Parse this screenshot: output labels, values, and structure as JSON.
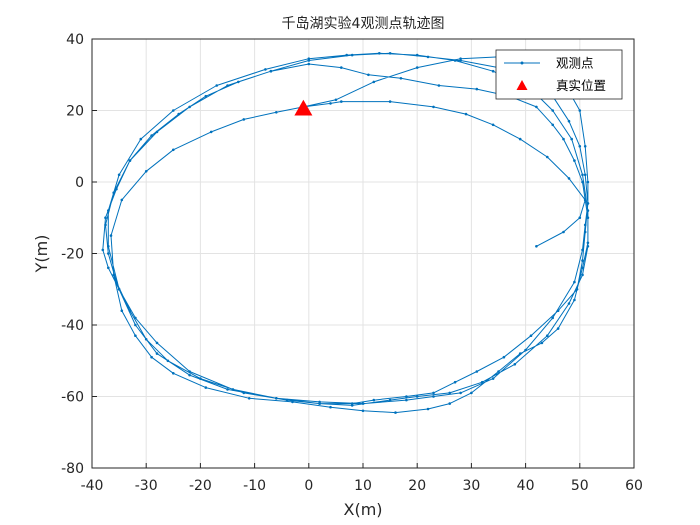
{
  "chart_data": {
    "type": "line",
    "title": "千岛湖实验4观测点轨迹图",
    "xlabel": "X(m)",
    "ylabel": "Y(m)",
    "xlim": [
      -40,
      60
    ],
    "ylim": [
      -80,
      40
    ],
    "xticks": [
      -40,
      -30,
      -20,
      -10,
      0,
      10,
      20,
      30,
      40,
      50,
      60
    ],
    "yticks": [
      -80,
      -60,
      -40,
      -20,
      0,
      20,
      40
    ],
    "grid": true,
    "legend_position": "top-right",
    "series": [
      {
        "name": "观测点",
        "color": "#0072BD",
        "marker": "dot",
        "points": [
          [
            -1,
            21
          ],
          [
            4,
            22
          ],
          [
            6,
            22.5
          ],
          [
            15,
            22.5
          ],
          [
            23,
            21
          ],
          [
            29,
            19
          ],
          [
            34,
            16
          ],
          [
            39,
            12
          ],
          [
            44,
            7
          ],
          [
            48,
            1
          ],
          [
            51,
            -5
          ],
          [
            51.5,
            -10
          ],
          [
            51.5,
            -17
          ],
          [
            50.5,
            -24
          ],
          [
            49,
            -33
          ],
          [
            46,
            -41
          ],
          [
            43,
            -45
          ],
          [
            39,
            -48
          ],
          [
            35,
            -53
          ],
          [
            30,
            -59
          ],
          [
            26,
            -62
          ],
          [
            22,
            -63.5
          ],
          [
            16,
            -64.5
          ],
          [
            10,
            -64
          ],
          [
            4,
            -63
          ],
          [
            -3,
            -61.5
          ],
          [
            -11,
            -60.5
          ],
          [
            -19,
            -57.5
          ],
          [
            -25,
            -53.5
          ],
          [
            -29,
            -49
          ],
          [
            -32,
            -43
          ],
          [
            -34.5,
            -36
          ],
          [
            -36,
            -26
          ],
          [
            -36.5,
            -15
          ],
          [
            -34.5,
            -5
          ],
          [
            -30,
            3
          ],
          [
            -25,
            9
          ],
          [
            -18,
            14
          ],
          [
            -12,
            17.5
          ],
          [
            -6,
            19.5
          ],
          [
            -1,
            21
          ],
          [
            5,
            23
          ],
          [
            12,
            28
          ],
          [
            20,
            32
          ],
          [
            28,
            34.5
          ],
          [
            35,
            35
          ],
          [
            42,
            33
          ],
          [
            47,
            28
          ],
          [
            50,
            20
          ],
          [
            51,
            10
          ],
          [
            51.5,
            0
          ],
          [
            51.5,
            -6
          ],
          [
            51,
            -12
          ],
          [
            50.5,
            -19
          ],
          [
            49,
            -28
          ],
          [
            45,
            -38
          ],
          [
            40,
            -47
          ],
          [
            34,
            -55
          ],
          [
            28,
            -59
          ],
          [
            23,
            -60
          ],
          [
            18,
            -61
          ],
          [
            10,
            -62
          ],
          [
            2,
            -61.5
          ],
          [
            -6,
            -60.5
          ],
          [
            -15,
            -58
          ],
          [
            -22,
            -54
          ],
          [
            -28,
            -48
          ],
          [
            -32,
            -40
          ],
          [
            -35,
            -30
          ],
          [
            -37,
            -18
          ],
          [
            -37,
            -8
          ],
          [
            -35,
            2
          ],
          [
            -31,
            12
          ],
          [
            -25,
            20
          ],
          [
            -17,
            27
          ],
          [
            -8,
            31.5
          ],
          [
            0,
            34.5
          ],
          [
            7,
            35.5
          ],
          [
            13,
            36
          ],
          [
            20,
            35.5
          ],
          [
            27,
            34
          ],
          [
            34,
            31
          ],
          [
            41,
            26
          ],
          [
            45,
            20
          ],
          [
            48.5,
            12
          ],
          [
            50.5,
            2
          ],
          [
            51.5,
            -8
          ],
          [
            51.5,
            -18
          ],
          [
            50.5,
            -26
          ],
          [
            48,
            -34
          ],
          [
            44,
            -43
          ],
          [
            38,
            -51
          ],
          [
            32,
            -56
          ],
          [
            26,
            -59
          ],
          [
            20,
            -60
          ],
          [
            15,
            -61
          ],
          [
            8,
            -62.5
          ],
          [
            2,
            -62
          ],
          [
            -6,
            -60.5
          ],
          [
            -14,
            -58
          ],
          [
            -22,
            -53
          ],
          [
            -28,
            -45
          ],
          [
            -32,
            -38
          ],
          [
            -35,
            -30
          ],
          [
            -37,
            -24
          ],
          [
            -38,
            -19
          ],
          [
            -37.5,
            -10
          ],
          [
            -35.5,
            -2
          ],
          [
            -33,
            6
          ],
          [
            -28,
            14
          ],
          [
            -22,
            21
          ],
          [
            -15,
            27
          ],
          [
            -7,
            31
          ],
          [
            0,
            34
          ],
          [
            8,
            35.5
          ],
          [
            15,
            36
          ],
          [
            22,
            35
          ],
          [
            28,
            34
          ],
          [
            35,
            32
          ],
          [
            41,
            29
          ],
          [
            45,
            24
          ],
          [
            48,
            17
          ],
          [
            50,
            10
          ],
          [
            51,
            2
          ],
          [
            51.5,
            -6
          ],
          [
            51,
            -14
          ],
          [
            50.5,
            -22
          ],
          [
            49.5,
            -30
          ],
          [
            46,
            -36
          ],
          [
            41,
            -43
          ],
          [
            36,
            -49
          ],
          [
            31,
            -53
          ],
          [
            27,
            -56
          ],
          [
            23,
            -59
          ],
          [
            18,
            -60
          ],
          [
            12,
            -61
          ],
          [
            8,
            -62
          ],
          [
            2,
            -62
          ],
          [
            -4,
            -61
          ],
          [
            -12,
            -59
          ],
          [
            -20,
            -55
          ],
          [
            -26,
            -50
          ],
          [
            -30,
            -44
          ],
          [
            -33,
            -36
          ],
          [
            -35.5,
            -28
          ],
          [
            -37,
            -20
          ],
          [
            -37.5,
            -12
          ],
          [
            -36,
            -3
          ],
          [
            -33,
            6
          ],
          [
            -29,
            13
          ],
          [
            -24,
            19
          ],
          [
            -19,
            24
          ],
          [
            -13,
            28
          ],
          [
            -7,
            31
          ],
          [
            0,
            33
          ],
          [
            6,
            32
          ],
          [
            11,
            30
          ],
          [
            17,
            29
          ],
          [
            24,
            27
          ],
          [
            31,
            26
          ],
          [
            37,
            24
          ],
          [
            42,
            21
          ],
          [
            45,
            16
          ],
          [
            47,
            12
          ],
          [
            49,
            6
          ],
          [
            50.5,
            0
          ],
          [
            51,
            -5
          ],
          [
            50,
            -10
          ],
          [
            47,
            -14
          ],
          [
            42,
            -18
          ]
        ]
      },
      {
        "name": "真实位置",
        "color": "#FF0000",
        "marker": "triangle",
        "points": [
          [
            -1,
            20.5
          ]
        ]
      }
    ]
  }
}
